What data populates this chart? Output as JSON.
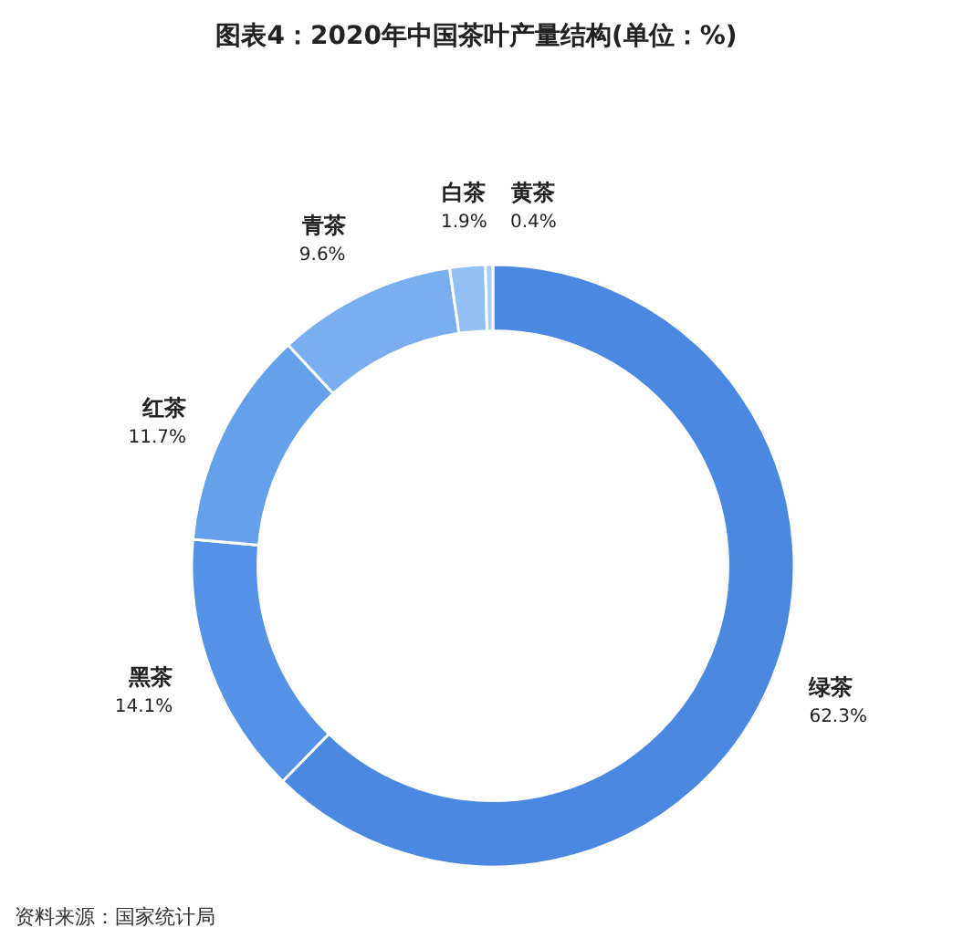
{
  "chart_data": {
    "type": "donut",
    "title": "图表4：2020年中国茶叶产量结构(单位：%)",
    "categories": [
      "绿茶",
      "黑茶",
      "红茶",
      "青茶",
      "白茶",
      "黄茶"
    ],
    "values": [
      62.3,
      14.1,
      11.7,
      9.6,
      1.9,
      0.4
    ],
    "colors": [
      "#4a88e2",
      "#5592e6",
      "#65a0ea",
      "#7aaeee",
      "#92c0f2",
      "#aacff6"
    ],
    "value_labels": [
      "62.3%",
      "14.1%",
      "11.7%",
      "9.6%",
      "1.9%",
      "0.4%"
    ],
    "annotations": [
      "资料来源：国家统计局"
    ]
  }
}
